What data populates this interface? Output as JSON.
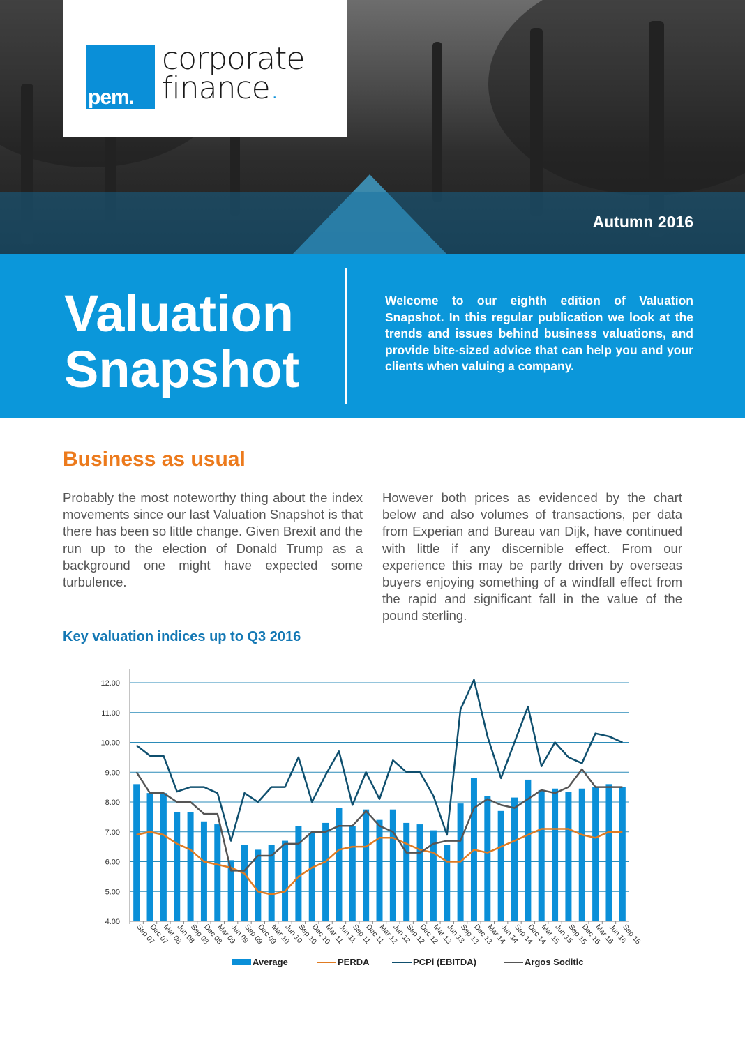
{
  "header": {
    "logo": {
      "mark": "pem.",
      "line1": "corporate",
      "line2": "finance",
      "brand_color": "#0a8fd8"
    },
    "edition": "Autumn 2016"
  },
  "band": {
    "title_line1": "Valuation",
    "title_line2": "Snapshot",
    "intro": "Welcome to our eighth edition of Valuation Snapshot. In this regular publication we look at the trends and issues behind business valuations, and provide bite-sized advice that can help you and your clients when valuing a company.",
    "color": "#0b97da"
  },
  "article": {
    "heading": "Business as usual",
    "col1": "Probably the most noteworthy thing about the index movements since our last Valuation Snapshot is that there has been so little change.  Given Brexit and the run up to the election of Donald Trump as a background one might have expected some turbulence.",
    "col2": "However both prices as evidenced by the chart below and also volumes of transactions, per data from Experian and Bureau van Dijk, have continued with little if any discernible effect. From our experience this may be partly driven by overseas buyers enjoying something of a windfall effect from the rapid and significant fall in the value of the pound sterling."
  },
  "chart_title": "Key valuation indices up to Q3 2016",
  "chart_data": {
    "type": "bar+line",
    "title": "Key valuation indices up to Q3 2016",
    "xlabel": "",
    "ylabel": "",
    "ylim": [
      4,
      12
    ],
    "yticks": [
      "4.00",
      "5.00",
      "6.00",
      "7.00",
      "8.00",
      "9.00",
      "10.00",
      "11.00",
      "12.00"
    ],
    "grid": true,
    "legend_position": "bottom",
    "categories": [
      "Sep 07",
      "Dec 07",
      "Mar 08",
      "Jun 08",
      "Sep 08",
      "Dec 08",
      "Mar 09",
      "Jun 09",
      "Sep 09",
      "Dec 09",
      "Mar 10",
      "Jun 10",
      "Sep 10",
      "Dec 10",
      "Mar 11",
      "Jun 11",
      "Sep 11",
      "Dec 11",
      "Mar 12",
      "Jun 12",
      "Sep 12",
      "Dec 12",
      "Mar 13",
      "Jun 13",
      "Sep 13",
      "Dec 13",
      "Mar 14",
      "Jun 14",
      "Sep 14",
      "Dec 14",
      "Mar 15",
      "Jun 15",
      "Sep 15",
      "Dec 15",
      "Mar 16",
      "Jun 16",
      "Sep 16"
    ],
    "series": [
      {
        "name": "Average",
        "type": "bar",
        "color": "#0a8fd8",
        "values": [
          8.6,
          8.3,
          8.3,
          7.65,
          7.65,
          7.35,
          7.25,
          6.05,
          6.55,
          6.4,
          6.55,
          6.7,
          7.2,
          6.95,
          7.3,
          7.8,
          7.2,
          7.75,
          7.4,
          7.75,
          7.3,
          7.25,
          7.05,
          6.55,
          7.95,
          8.8,
          8.2,
          7.7,
          8.15,
          8.75,
          8.4,
          8.45,
          8.35,
          8.45,
          8.5,
          8.6,
          8.5
        ]
      },
      {
        "name": "PERDA",
        "type": "line",
        "color": "#e07b22",
        "values": [
          6.9,
          7.0,
          6.9,
          6.6,
          6.4,
          6.0,
          5.9,
          5.8,
          5.6,
          5.0,
          4.9,
          5.0,
          5.5,
          5.8,
          6.0,
          6.4,
          6.5,
          6.5,
          6.8,
          6.8,
          6.6,
          6.4,
          6.3,
          6.0,
          6.0,
          6.4,
          6.3,
          6.5,
          6.7,
          6.9,
          7.1,
          7.1,
          7.1,
          6.9,
          6.8,
          7.0,
          7.0
        ]
      },
      {
        "name": "PCPi (EBITDA)",
        "type": "line",
        "color": "#0f4f6e",
        "values": [
          9.9,
          9.55,
          9.55,
          8.35,
          8.5,
          8.5,
          8.3,
          6.7,
          8.3,
          8.0,
          8.5,
          8.5,
          9.5,
          8.0,
          8.9,
          9.7,
          7.9,
          9.0,
          8.1,
          9.4,
          9.0,
          9.0,
          8.2,
          6.9,
          11.1,
          12.1,
          10.2,
          8.8,
          10.0,
          11.2,
          9.2,
          10.0,
          9.5,
          9.3,
          10.3,
          10.2,
          10.0
        ]
      },
      {
        "name": "Argos Soditic",
        "type": "line",
        "color": "#555555",
        "values": [
          9.0,
          8.3,
          8.3,
          8.0,
          8.0,
          7.6,
          7.6,
          5.7,
          5.7,
          6.2,
          6.2,
          6.6,
          6.6,
          7.0,
          7.0,
          7.2,
          7.2,
          7.7,
          7.2,
          7.0,
          6.3,
          6.3,
          6.6,
          6.7,
          6.7,
          7.8,
          8.1,
          7.9,
          7.8,
          8.1,
          8.4,
          8.3,
          8.5,
          9.1,
          8.5,
          8.5,
          8.5
        ]
      }
    ]
  }
}
